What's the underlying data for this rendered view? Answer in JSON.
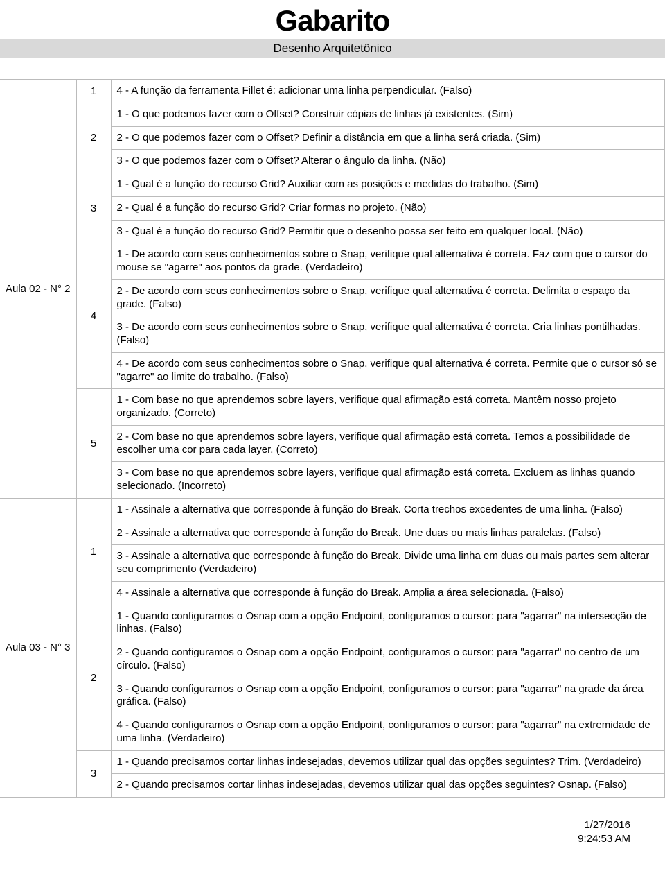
{
  "header": {
    "title": "Gabarito",
    "subtitle": "Desenho Arquitetônico"
  },
  "footer": {
    "date": "1/27/2016",
    "time": "9:24:53 AM"
  },
  "lessons": [
    {
      "label": "Aula 02 - N° 2",
      "questions": [
        {
          "num": "1",
          "answers": [
            "4 - A função da ferramenta Fillet é: adicionar uma linha perpendicular. (Falso)"
          ]
        },
        {
          "num": "2",
          "answers": [
            "1 - O que podemos fazer com o Offset? Construir cópias de linhas já existentes. (Sim)",
            "2 - O que podemos fazer com o Offset? Definir a distância em que a linha será criada. (Sim)",
            "3 - O que podemos fazer com o Offset? Alterar o ângulo da linha. (Não)"
          ]
        },
        {
          "num": "3",
          "answers": [
            "1 - Qual é a função do recurso Grid? Auxiliar com as posições e medidas do trabalho. (Sim)",
            "2 - Qual é a função do recurso Grid? Criar formas no projeto. (Não)",
            "3 - Qual é a função do recurso Grid? Permitir que o desenho possa ser feito em qualquer local. (Não)"
          ]
        },
        {
          "num": "4",
          "answers": [
            "1 - De acordo com seus conhecimentos sobre o Snap, verifique qual alternativa é correta. Faz com que o cursor do mouse se \"agarre\" aos pontos da grade. (Verdadeiro)",
            "2 - De acordo com seus conhecimentos sobre o Snap, verifique qual alternativa é correta. Delimita o espaço da grade. (Falso)",
            "3 - De acordo com seus conhecimentos sobre o Snap, verifique qual alternativa é correta. Cria linhas pontilhadas. (Falso)",
            "4 - De acordo com seus conhecimentos sobre o Snap, verifique qual alternativa é correta. Permite que o cursor só se \"agarre\" ao limite do trabalho. (Falso)"
          ]
        },
        {
          "num": "5",
          "answers": [
            "1 - Com base no que aprendemos sobre layers, verifique qual afirmação está correta. Mantêm nosso projeto organizado. (Correto)",
            "2 - Com base no que aprendemos sobre layers, verifique qual afirmação está correta. Temos a possibilidade de escolher uma cor para cada layer. (Correto)",
            "3 - Com base no que aprendemos sobre layers, verifique qual afirmação está correta. Excluem as linhas quando selecionado. (Incorreto)"
          ]
        }
      ]
    },
    {
      "label": "Aula 03 - N° 3",
      "questions": [
        {
          "num": "1",
          "answers": [
            "1 - Assinale a alternativa que corresponde à função do Break. Corta trechos excedentes de uma linha. (Falso)",
            "2 - Assinale a alternativa que corresponde à função do Break. Une duas ou mais linhas paralelas. (Falso)",
            "3 - Assinale a alternativa que corresponde à função do Break. Divide uma linha em duas ou mais partes sem alterar seu comprimento (Verdadeiro)",
            "4 - Assinale a alternativa que corresponde à função do Break. Amplia a área selecionada. (Falso)"
          ]
        },
        {
          "num": "2",
          "answers": [
            "1 - Quando configuramos o Osnap com a opção Endpoint, configuramos o cursor: para \"agarrar\" na intersecção de linhas. (Falso)",
            "2 - Quando configuramos o Osnap com a opção Endpoint, configuramos o cursor: para \"agarrar\" no centro de um círculo. (Falso)",
            "3 - Quando configuramos o Osnap com a opção Endpoint, configuramos o cursor: para \"agarrar\" na grade da área gráfica. (Falso)",
            "4 - Quando configuramos o Osnap com a opção Endpoint, configuramos o cursor: para \"agarrar\" na extremidade de uma linha. (Verdadeiro)"
          ]
        },
        {
          "num": "3",
          "answers": [
            "1 - Quando precisamos cortar linhas indesejadas, devemos utilizar qual das opções seguintes? Trim. (Verdadeiro)",
            "2 - Quando precisamos cortar linhas indesejadas, devemos utilizar qual das opções seguintes? Osnap. (Falso)"
          ]
        }
      ]
    }
  ]
}
